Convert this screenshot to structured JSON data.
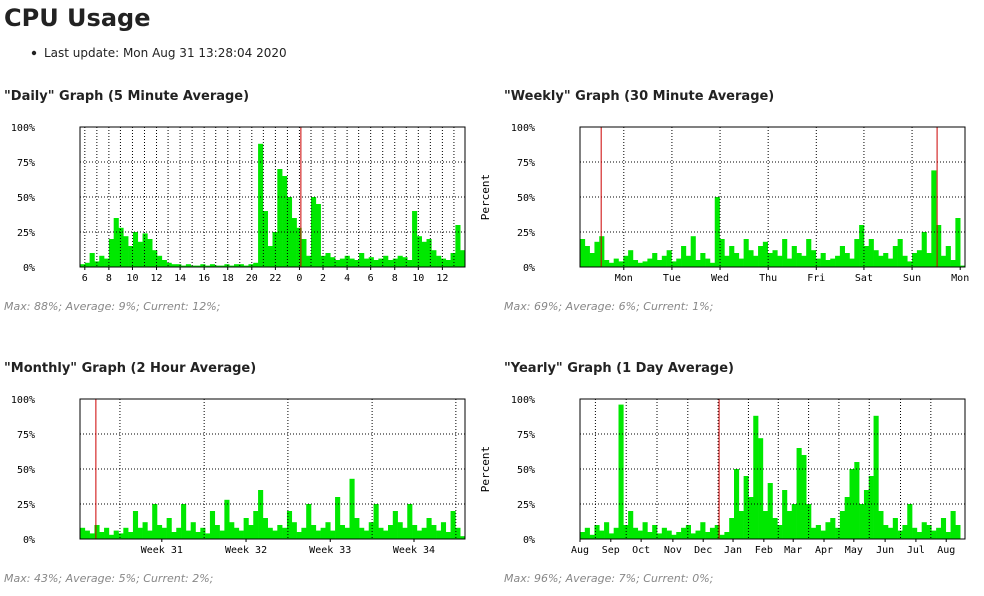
{
  "page_title": "CPU Usage",
  "last_update": "Last update: Mon Aug 31 13:28:04 2020",
  "chart_data": [
    {
      "type": "bar",
      "title": "\"Daily\" Graph (5 Minute Average)",
      "stats": "Max: 88%; Average: 9%; Current: 12%;",
      "color": "#00e800",
      "rule_color": "#cc0000",
      "grid": true,
      "xlim": [
        0,
        80
      ],
      "ylim": [
        0,
        100
      ],
      "yticks": [
        {
          "value": 0,
          "label": "0%"
        },
        {
          "value": 25,
          "label": "25%"
        },
        {
          "value": 50,
          "label": "50%"
        },
        {
          "value": 75,
          "label": "75%"
        },
        {
          "value": 100,
          "label": "100%"
        }
      ],
      "xticks": [
        {
          "value": 1.0,
          "label": "6"
        },
        {
          "value": 6.0,
          "label": "8"
        },
        {
          "value": 10.9,
          "label": "10"
        },
        {
          "value": 15.9,
          "label": "12"
        },
        {
          "value": 20.8,
          "label": "14"
        },
        {
          "value": 25.8,
          "label": "16"
        },
        {
          "value": 30.7,
          "label": "18"
        },
        {
          "value": 35.7,
          "label": "20"
        },
        {
          "value": 40.6,
          "label": "22"
        },
        {
          "value": 45.6,
          "label": "0"
        },
        {
          "value": 50.5,
          "label": "2"
        },
        {
          "value": 55.5,
          "label": "4"
        },
        {
          "value": 60.4,
          "label": "6"
        },
        {
          "value": 65.4,
          "label": "8"
        },
        {
          "value": 70.3,
          "label": "10"
        },
        {
          "value": 75.3,
          "label": "12"
        }
      ],
      "xgrid": [
        1.0,
        3.5,
        6.0,
        8.4,
        10.9,
        13.4,
        15.9,
        18.3,
        20.8,
        23.3,
        25.8,
        28.2,
        30.7,
        33.2,
        35.7,
        38.1,
        40.6,
        43.1,
        45.6,
        48.0,
        50.5,
        53.0,
        55.5,
        57.9,
        60.4,
        62.9,
        65.4,
        67.8,
        70.3,
        72.8,
        75.3,
        77.7
      ],
      "vrules": [
        45.9
      ],
      "values": [
        2,
        3,
        10,
        4,
        8,
        6,
        20,
        35,
        28,
        22,
        15,
        25,
        18,
        24,
        20,
        12,
        8,
        5,
        3,
        2,
        2,
        1,
        2,
        1,
        1,
        2,
        1,
        2,
        1,
        1,
        2,
        1,
        2,
        2,
        1,
        2,
        3,
        88,
        40,
        15,
        25,
        70,
        65,
        50,
        35,
        28,
        20,
        8,
        50,
        45,
        8,
        10,
        7,
        5,
        6,
        8,
        6,
        5,
        10,
        6,
        7,
        5,
        6,
        8,
        5,
        6,
        8,
        7,
        5,
        40,
        22,
        18,
        20,
        12,
        8,
        6,
        5,
        10,
        30,
        12
      ]
    },
    {
      "type": "bar",
      "title": "\"Weekly\" Graph (30 Minute Average)",
      "stats": "Max: 69%; Average: 6%; Current: 1%;",
      "ylabel": "Percent",
      "color": "#00e800",
      "rule_color": "#cc0000",
      "grid": true,
      "xlim": [
        0,
        80
      ],
      "ylim": [
        0,
        100
      ],
      "yticks": [
        {
          "value": 0,
          "label": "0%"
        },
        {
          "value": 25,
          "label": "25%"
        },
        {
          "value": 50,
          "label": "50%"
        },
        {
          "value": 75,
          "label": "75%"
        },
        {
          "value": 100,
          "label": "100%"
        }
      ],
      "xticks": [
        {
          "value": 9.1,
          "label": "Mon"
        },
        {
          "value": 19.1,
          "label": "Tue"
        },
        {
          "value": 29.1,
          "label": "Wed"
        },
        {
          "value": 39.1,
          "label": "Thu"
        },
        {
          "value": 49.1,
          "label": "Fri"
        },
        {
          "value": 59.0,
          "label": "Sat"
        },
        {
          "value": 69.0,
          "label": "Sun"
        },
        {
          "value": 79.0,
          "label": "Mon"
        }
      ],
      "xgrid": [
        9.1,
        19.1,
        29.1,
        39.1,
        49.1,
        59.0,
        69.0
      ],
      "vrules": [
        4.4,
        74.2
      ],
      "values": [
        20,
        15,
        10,
        18,
        22,
        5,
        3,
        6,
        4,
        8,
        12,
        5,
        3,
        4,
        6,
        10,
        5,
        8,
        12,
        4,
        6,
        15,
        8,
        22,
        5,
        10,
        6,
        3,
        50,
        20,
        8,
        15,
        10,
        6,
        20,
        12,
        8,
        15,
        18,
        10,
        12,
        8,
        20,
        6,
        15,
        10,
        8,
        20,
        12,
        6,
        10,
        5,
        6,
        8,
        15,
        10,
        6,
        20,
        30,
        15,
        20,
        12,
        8,
        10,
        6,
        15,
        20,
        8,
        4,
        10,
        12,
        25,
        10,
        69,
        30,
        8,
        15,
        5,
        35,
        1
      ]
    },
    {
      "type": "bar",
      "title": "\"Monthly\" Graph (2 Hour Average)",
      "stats": "Max: 43%; Average: 5%; Current: 2%;",
      "color": "#00e800",
      "rule_color": "#cc0000",
      "grid": true,
      "xlim": [
        0,
        80
      ],
      "ylim": [
        0,
        100
      ],
      "yticks": [
        {
          "value": 0,
          "label": "0%"
        },
        {
          "value": 25,
          "label": "25%"
        },
        {
          "value": 50,
          "label": "50%"
        },
        {
          "value": 75,
          "label": "75%"
        },
        {
          "value": 100,
          "label": "100%"
        }
      ],
      "xticks": [
        {
          "value": 17.0,
          "label": "Week 31"
        },
        {
          "value": 34.5,
          "label": "Week 32"
        },
        {
          "value": 52.0,
          "label": "Week 33"
        },
        {
          "value": 69.4,
          "label": "Week 34"
        }
      ],
      "xgrid": [
        8.3,
        25.8,
        43.2,
        60.7,
        78.1
      ],
      "vrules": [
        3.3
      ],
      "values": [
        8,
        6,
        4,
        10,
        5,
        8,
        3,
        6,
        4,
        8,
        5,
        20,
        8,
        12,
        6,
        25,
        10,
        8,
        15,
        5,
        8,
        25,
        6,
        12,
        5,
        8,
        4,
        20,
        10,
        6,
        28,
        12,
        8,
        6,
        15,
        10,
        20,
        35,
        15,
        8,
        6,
        10,
        8,
        20,
        12,
        5,
        8,
        25,
        10,
        6,
        8,
        12,
        6,
        30,
        10,
        8,
        43,
        15,
        8,
        6,
        12,
        25,
        8,
        6,
        10,
        20,
        12,
        8,
        25,
        10,
        6,
        8,
        15,
        10,
        6,
        12,
        5,
        20,
        8,
        2
      ]
    },
    {
      "type": "bar",
      "title": "\"Yearly\" Graph (1 Day Average)",
      "stats": "Max: 96%; Average: 7%; Current: 0%;",
      "ylabel": "Percent",
      "color": "#00e800",
      "rule_color": "#cc0000",
      "grid": true,
      "xlim": [
        0,
        80
      ],
      "ylim": [
        0,
        100
      ],
      "yticks": [
        {
          "value": 0,
          "label": "0%"
        },
        {
          "value": 25,
          "label": "25%"
        },
        {
          "value": 50,
          "label": "50%"
        },
        {
          "value": 75,
          "label": "75%"
        },
        {
          "value": 100,
          "label": "100%"
        }
      ],
      "xticks": [
        {
          "value": 0.0,
          "label": "Aug"
        },
        {
          "value": 6.4,
          "label": "Sep"
        },
        {
          "value": 12.7,
          "label": "Oct"
        },
        {
          "value": 19.3,
          "label": "Nov"
        },
        {
          "value": 25.6,
          "label": "Dec"
        },
        {
          "value": 31.8,
          "label": "Jan"
        },
        {
          "value": 38.2,
          "label": "Feb"
        },
        {
          "value": 44.3,
          "label": "Mar"
        },
        {
          "value": 50.7,
          "label": "Apr"
        },
        {
          "value": 56.9,
          "label": "May"
        },
        {
          "value": 63.4,
          "label": "Jun"
        },
        {
          "value": 69.8,
          "label": "Jul"
        },
        {
          "value": 76.1,
          "label": "Aug"
        }
      ],
      "xgrid": [
        3.2,
        9.6,
        16.0,
        22.4,
        28.7,
        35.0,
        41.2,
        47.5,
        53.8,
        60.1,
        66.6,
        72.9
      ],
      "vrules": [
        28.9
      ],
      "values": [
        5,
        8,
        3,
        10,
        6,
        12,
        4,
        8,
        96,
        10,
        20,
        8,
        6,
        12,
        5,
        10,
        4,
        8,
        6,
        3,
        5,
        8,
        10,
        4,
        6,
        12,
        5,
        8,
        10,
        3,
        5,
        15,
        50,
        20,
        45,
        30,
        88,
        72,
        20,
        40,
        15,
        10,
        35,
        20,
        25,
        65,
        60,
        25,
        8,
        10,
        6,
        12,
        15,
        8,
        20,
        30,
        50,
        55,
        25,
        35,
        45,
        88,
        20,
        10,
        8,
        15,
        6,
        10,
        25,
        8,
        5,
        12,
        10,
        6,
        8,
        15,
        5,
        20,
        10,
        0
      ]
    }
  ]
}
